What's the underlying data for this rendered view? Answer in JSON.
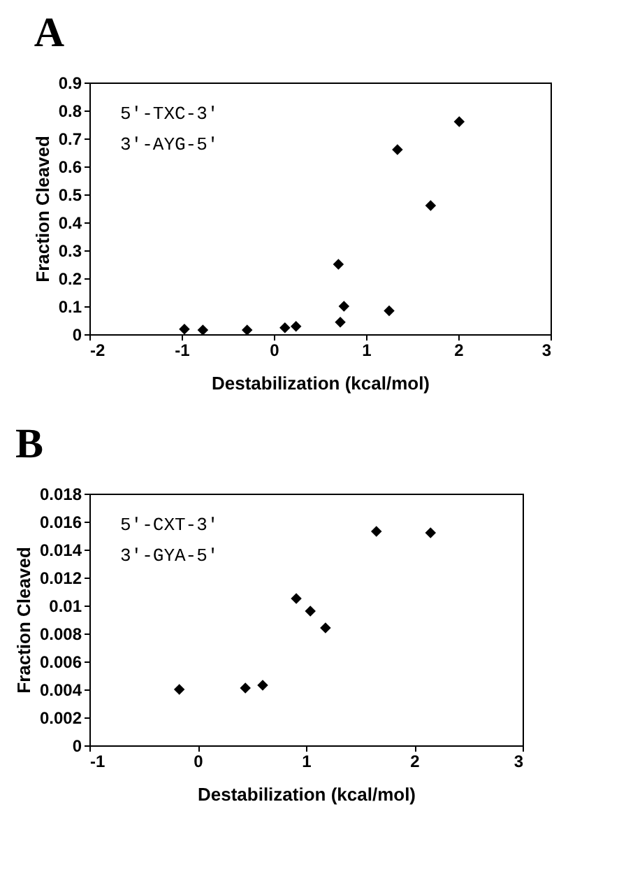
{
  "chart_data": [
    {
      "type": "scatter",
      "title": "A",
      "xlabel": "Destabilization (kcal/mol)",
      "ylabel": "Fraction Cleaved",
      "annotations": [
        "5′-TXC-3′",
        "3′-AYG-5′"
      ],
      "marker": "diamond",
      "grid": false,
      "x": [
        -0.97,
        -0.77,
        -0.29,
        0.12,
        0.24,
        0.7,
        0.72,
        0.76,
        1.25,
        1.34,
        1.7,
        2.01
      ],
      "series": [
        {
          "color": "#000000",
          "values": [
            0.018,
            0.015,
            0.015,
            0.023,
            0.028,
            0.25,
            0.043,
            0.1,
            0.084,
            0.66,
            0.46,
            0.76
          ]
        }
      ],
      "xlim": [
        -2,
        3
      ],
      "xticks": [
        -2,
        -1,
        0,
        1,
        2,
        3
      ],
      "ylim": [
        0,
        0.9
      ],
      "yticks": [
        0,
        0.1,
        0.2,
        0.3,
        0.4,
        0.5,
        0.6,
        0.7,
        0.8,
        0.9
      ]
    },
    {
      "type": "scatter",
      "title": "B",
      "xlabel": "Destabilization (kcal/mol)",
      "ylabel": "Fraction Cleaved",
      "annotations": [
        "5′-CXT-3′",
        "3′-GYA-5′"
      ],
      "marker": "diamond",
      "grid": false,
      "x": [
        -0.17,
        0.44,
        0.6,
        0.91,
        1.04,
        1.18,
        1.65,
        2.15
      ],
      "series": [
        {
          "color": "#000000",
          "values": [
            0.004,
            0.0041,
            0.0043,
            0.0105,
            0.0096,
            0.0084,
            0.0153,
            0.0152
          ]
        }
      ],
      "xlim": [
        -1,
        3
      ],
      "xticks": [
        -1,
        0,
        1,
        2,
        3
      ],
      "ylim": [
        0,
        0.018
      ],
      "yticks": [
        0,
        0.002,
        0.004,
        0.006,
        0.008,
        0.01,
        0.012,
        0.014,
        0.016,
        0.018
      ]
    }
  ]
}
